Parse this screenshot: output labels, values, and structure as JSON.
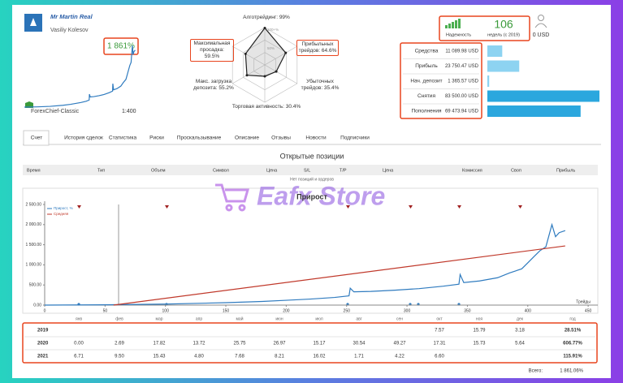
{
  "profile": {
    "name": "Mr Martin Real",
    "author": "Vasiliy Kolesov",
    "growth": "1 861%",
    "broker": "ForexChief-Classic",
    "leverage": "1:400"
  },
  "radar": {
    "scale": [
      "100+%",
      "50%"
    ],
    "axes": [
      {
        "label": "Алготрейдинг: 99%",
        "value": 99
      },
      {
        "label": "Прибыльных трейдов: 64.6%",
        "value": 64.6
      },
      {
        "label": "Убыточных трейдов: 35.4%",
        "value": 35.4
      },
      {
        "label": "Торговая активность: 30.4%",
        "value": 30.4
      },
      {
        "label": "Макс. загрузка депозита: 55.2%",
        "value": 55.2
      },
      {
        "label": "Максимальная просадка: 59.5%",
        "value": 59.5
      }
    ]
  },
  "reliability": {
    "label": "Надежность",
    "weeks": "106",
    "weeks_label": "недель (с 2019)",
    "subscribers": "0 USD"
  },
  "stats": [
    {
      "label": "Средства",
      "value": 11089.98,
      "value_label": "11 089.98 USD",
      "color": "#8dd3f1"
    },
    {
      "label": "Прибыль",
      "value": 23750.47,
      "value_label": "23 750.47 USD",
      "color": "#8dd3f1"
    },
    {
      "label": "Нач. депозит",
      "value": 1365.57,
      "value_label": "1 365.57 USD",
      "color": "#8dd3f1"
    },
    {
      "label": "Снятия",
      "value": 83500.0,
      "value_label": "83 500.00 USD",
      "color": "#2ba7de"
    },
    {
      "label": "Пополнения",
      "value": 69473.94,
      "value_label": "69 473.94 USD",
      "color": "#2ba7de"
    }
  ],
  "tabs": [
    "Счет",
    "История сделок",
    "Статистика",
    "Риски",
    "Проскальзывание",
    "Описание",
    "Отзывы",
    "Новости",
    "Подписчики"
  ],
  "positions": {
    "title": "Открытые позиции",
    "columns": [
      "Время",
      "Тип",
      "Объем",
      "Символ",
      "Цена",
      "S/L",
      "T/P",
      "Цена",
      "Комиссия",
      "Своп",
      "Прибыль"
    ],
    "empty": "Нет позиций и ордеров"
  },
  "watermark": "Eafx Store",
  "chart_data": {
    "type": "line",
    "title": "Прирост",
    "x_label": "Трейды",
    "xlim": [
      0,
      458
    ],
    "ylim": [
      0,
      2500
    ],
    "xticks": [
      0,
      50,
      100,
      150,
      200,
      250,
      300,
      350,
      400,
      450
    ],
    "yticks": [
      {
        "value": 0,
        "label": "0.00"
      },
      {
        "value": 500,
        "label": "500.00"
      },
      {
        "value": 1000,
        "label": "1 000.00"
      },
      {
        "value": 1500,
        "label": "1 500.00"
      },
      {
        "value": 2000,
        "label": "2 000.00"
      },
      {
        "value": 2500,
        "label": "2 500.00"
      }
    ],
    "grid": false,
    "series": [
      {
        "name": "Прирост, %",
        "color": "#2f7bbf",
        "x": [
          0,
          50,
          100,
          150,
          180,
          200,
          220,
          240,
          252,
          253,
          256,
          270,
          290,
          310,
          330,
          343,
          344,
          347,
          360,
          375,
          385,
          395,
          400,
          405,
          410,
          415,
          420,
          423,
          426,
          431
        ],
        "values": [
          0,
          8,
          25,
          60,
          90,
          120,
          150,
          190,
          230,
          420,
          330,
          340,
          370,
          410,
          470,
          520,
          760,
          560,
          600,
          680,
          800,
          900,
          1050,
          1200,
          1350,
          1450,
          2000,
          1700,
          1800,
          1850
        ]
      },
      {
        "name": "Средняя",
        "color": "#c0392b",
        "x": [
          57,
          431
        ],
        "values": [
          0,
          1470
        ]
      }
    ]
  },
  "yearly": {
    "columns": [
      "янв",
      "фев",
      "мар",
      "апр",
      "май",
      "июн",
      "июл",
      "авг",
      "сен",
      "окт",
      "ноя",
      "дек",
      "год"
    ],
    "rows": [
      {
        "year": "2019",
        "cells": [
          null,
          null,
          null,
          null,
          null,
          null,
          null,
          null,
          null,
          "7.57",
          "15.79",
          "3.18"
        ],
        "total": "28.51%"
      },
      {
        "year": "2020",
        "cells": [
          "0.00",
          "2.69",
          "17.82",
          "13.72",
          "25.75",
          "26.97",
          "15.17",
          "30.54",
          "49.27",
          "17.31",
          "15.73",
          "5.64"
        ],
        "total": "606.77%"
      },
      {
        "year": "2021",
        "cells": [
          "6.71",
          "9.50",
          "15.43",
          "4.80",
          "7.68",
          "8.21",
          "16.02",
          "1.71",
          "4.22",
          "6.60",
          null,
          null
        ],
        "total": "115.91%"
      }
    ],
    "total_label": "Всего:",
    "total": "1 861.06%"
  }
}
